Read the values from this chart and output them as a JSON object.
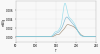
{
  "background_color": "#f0f0f0",
  "plot_bg": "#f8f8f8",
  "xlim": [
    50,
    250
  ],
  "ylim": [
    -0.001,
    0.008
  ],
  "xlabel": "T",
  "ylabel": "mW/g",
  "xticks": [
    50,
    100,
    150,
    200,
    250
  ],
  "yticks": [
    0.0,
    0.002,
    0.004,
    0.006
  ],
  "line1_color": "#88d8e8",
  "line2_color": "#6ab0d0",
  "line3_color": "#9a8870",
  "figsize": [
    1.0,
    0.54
  ],
  "dpi": 100
}
